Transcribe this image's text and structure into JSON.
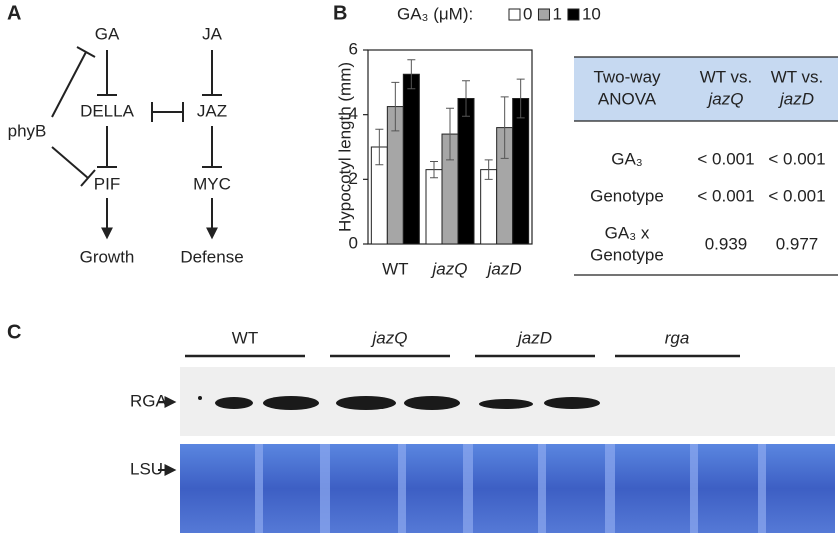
{
  "panels": {
    "a": "A",
    "b": "B",
    "c": "C"
  },
  "diagram": {
    "nodes": [
      "GA",
      "DELLA",
      "PIF",
      "Growth",
      "JA",
      "JAZ",
      "MYC",
      "Defense",
      "phyB"
    ]
  },
  "chart_data": {
    "type": "bar",
    "legend_title": "GA₃ (μM):",
    "y_label": "Hypocotyl length (mm)",
    "categories": [
      "WT",
      "jazQ",
      "jazD"
    ],
    "category_italic": [
      false,
      true,
      true
    ],
    "series": [
      {
        "name": "0",
        "color": "#ffffff",
        "values": [
          3.0,
          2.3,
          2.3
        ],
        "errors": [
          0.55,
          0.25,
          0.3
        ]
      },
      {
        "name": "1",
        "color": "#a6a6a6",
        "values": [
          4.25,
          3.4,
          3.6
        ],
        "errors": [
          0.75,
          0.8,
          0.95
        ]
      },
      {
        "name": "10",
        "color": "#000000",
        "values": [
          5.25,
          4.5,
          4.5
        ],
        "errors": [
          0.45,
          0.55,
          0.6
        ]
      }
    ],
    "ylim": [
      0,
      6
    ],
    "yticks": [
      0,
      2,
      4,
      6
    ]
  },
  "table": {
    "header": [
      [
        "Two-way",
        "ANOVA"
      ],
      [
        "WT vs.",
        "jazQ"
      ],
      [
        "WT vs.",
        "jazD"
      ]
    ],
    "rows": [
      [
        [
          "GA₃"
        ],
        "< 0.001",
        "< 0.001"
      ],
      [
        [
          "Genotype"
        ],
        "< 0.001",
        "< 0.001"
      ],
      [
        [
          "GA₃ x",
          "Genotype"
        ],
        "0.939",
        "0.977"
      ]
    ]
  },
  "blot": {
    "lanes": [
      "WT",
      "jazQ",
      "jazD",
      "rga"
    ],
    "rows": [
      "RGA",
      "LSU"
    ]
  }
}
